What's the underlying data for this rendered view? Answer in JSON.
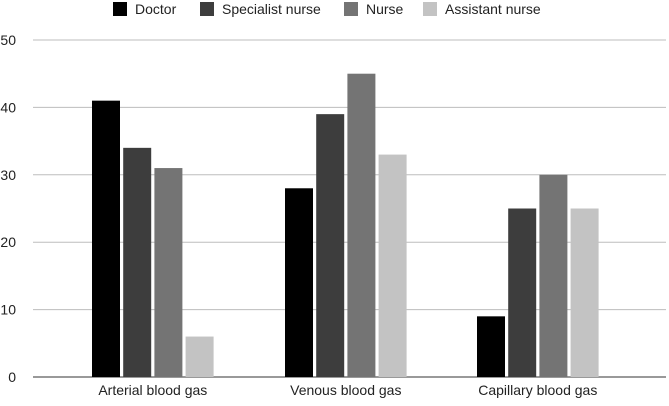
{
  "chart_data": {
    "type": "bar",
    "title": "",
    "xlabel": "",
    "ylabel": "",
    "categories": [
      "Arterial blood gas",
      "Venous blood gas",
      "Capillary blood gas"
    ],
    "series": [
      {
        "name": "Doctor",
        "color": "#000000",
        "values": [
          41,
          28,
          9
        ]
      },
      {
        "name": "Specialist nurse",
        "color": "#3d3d3d",
        "values": [
          34,
          39,
          25
        ]
      },
      {
        "name": "Nurse",
        "color": "#747474",
        "values": [
          31,
          45,
          30
        ]
      },
      {
        "name": "Assistant nurse",
        "color": "#c3c3c3",
        "values": [
          6,
          33,
          25
        ]
      }
    ],
    "ylim": [
      0,
      50
    ],
    "yticks": [
      "0",
      "10",
      "20",
      "30",
      "40",
      "50"
    ],
    "grid": true,
    "legend_position": "top"
  }
}
